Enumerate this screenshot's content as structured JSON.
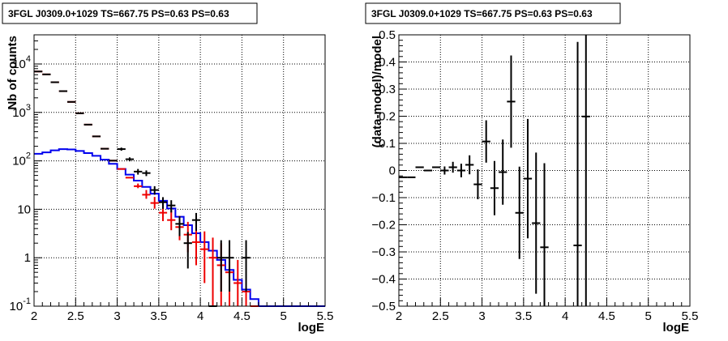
{
  "chart_data": [
    {
      "type": "histogram",
      "title": "3FGL J0309.0+1029 TS=667.75 PS=0.63 PS=0.63",
      "xlabel": "logE",
      "ylabel": "Nb of counts",
      "xlim": [
        2,
        5.5
      ],
      "ylim": [
        0.1,
        40000
      ],
      "yscale": "log",
      "grid": true,
      "x_ticks": [
        {
          "value": 2,
          "label": "2"
        },
        {
          "value": 2.5,
          "label": "2.5"
        },
        {
          "value": 3,
          "label": "3"
        },
        {
          "value": 3.5,
          "label": "3.5"
        },
        {
          "value": 4,
          "label": "4"
        },
        {
          "value": 4.5,
          "label": "4.5"
        },
        {
          "value": 5,
          "label": "5"
        },
        {
          "value": 5.5,
          "label": "5.5"
        }
      ],
      "y_ticks": [
        {
          "value": 0.1,
          "label": "10^-1",
          "base": "10",
          "exp": "-1"
        },
        {
          "value": 1,
          "label": "1",
          "base": "1",
          "exp": ""
        },
        {
          "value": 10,
          "label": "10",
          "base": "10",
          "exp": ""
        },
        {
          "value": 100,
          "label": "10^2",
          "base": "10",
          "exp": "2"
        },
        {
          "value": 1000,
          "label": "10^3",
          "base": "10",
          "exp": "3"
        },
        {
          "value": 10000,
          "label": "10^4",
          "base": "10",
          "exp": "4"
        }
      ],
      "series": [
        {
          "style": "step",
          "color": "#0000ee",
          "bin_width": 0.1,
          "x": [
            2.0,
            2.1,
            2.2,
            2.3,
            2.4,
            2.5,
            2.6,
            2.7,
            2.8,
            2.9,
            3.0,
            3.1,
            3.2,
            3.3,
            3.4,
            3.5,
            3.6,
            3.7,
            3.8,
            3.9,
            4.0,
            4.1,
            4.2,
            4.3,
            4.4,
            4.5,
            4.6,
            4.7,
            4.8,
            4.9,
            5.0,
            5.1,
            5.2,
            5.3,
            5.4
          ],
          "values": [
            140,
            150,
            165,
            175,
            172,
            160,
            145,
            127,
            106,
            87,
            68,
            52,
            39,
            29,
            21,
            15,
            10.4,
            7.0,
            4.7,
            3.2,
            2.1,
            1.4,
            0.9,
            0.56,
            0.35,
            0.22,
            0.14,
            0.1,
            0.1,
            0.1,
            0.1,
            0.1,
            0.1,
            0.1,
            0.1
          ]
        },
        {
          "style": "errorbar",
          "color": "#ee0000",
          "x": [
            2.05,
            2.15,
            2.25,
            2.35,
            2.45,
            2.55,
            2.65,
            2.75,
            2.85,
            2.95,
            3.05,
            3.15,
            3.25,
            3.35,
            3.45,
            3.55,
            3.65,
            3.75,
            3.85,
            3.95,
            4.05,
            4.15,
            4.25,
            4.35,
            4.45,
            4.55,
            4.65
          ],
          "values": [
            7000,
            6100,
            4200,
            2750,
            1650,
            960,
            560,
            320,
            178,
            101,
            68,
            45,
            30,
            20,
            13.5,
            8.5,
            6.0,
            4.3,
            3.0,
            2.1,
            1.5,
            1.0,
            0.7,
            0.5,
            0.3,
            0.2,
            0.1
          ],
          "err_low": [
            0,
            0,
            0,
            0,
            0,
            0,
            0,
            0,
            0,
            0,
            0,
            0,
            2.7,
            3.5,
            3.2,
            2.8,
            2.3,
            2.0,
            1.7,
            1.4,
            1.2,
            0.95,
            0.6,
            0.45,
            0.28,
            0.1,
            0
          ],
          "err_high": [
            0,
            0,
            0,
            0,
            0,
            0,
            0,
            0,
            0,
            0,
            0,
            0,
            4,
            5,
            4.5,
            4,
            3.5,
            3,
            2.5,
            2.2,
            2.0,
            1.6,
            1.3,
            1.0,
            0.6,
            0,
            0
          ]
        },
        {
          "style": "errorbar",
          "color": "#000000",
          "x": [
            2.05,
            2.15,
            2.25,
            2.35,
            2.45,
            2.55,
            2.65,
            2.75,
            2.85,
            2.95,
            3.05,
            3.15,
            3.25,
            3.35,
            3.45,
            3.55,
            3.65,
            3.75,
            3.85,
            3.95,
            4.15,
            4.25,
            4.35,
            4.55
          ],
          "values": [
            7000,
            6100,
            4200,
            2750,
            1650,
            960,
            560,
            320,
            178,
            101,
            175,
            108,
            60,
            56,
            25,
            14,
            12,
            5,
            2,
            6,
            0.1,
            1,
            1,
            1
          ],
          "err_low": [
            0,
            0,
            0,
            0,
            0,
            0,
            0,
            0,
            0,
            0,
            13,
            10,
            8,
            7.5,
            5,
            3.8,
            3.4,
            2.2,
            1.4,
            2.4,
            0,
            0.8,
            0.8,
            0.8
          ],
          "err_high": [
            0,
            0,
            0,
            0,
            0,
            0,
            0,
            0,
            0,
            0,
            13,
            10,
            8,
            7.5,
            5,
            3.8,
            3.4,
            2.2,
            1.4,
            2.4,
            0,
            1.3,
            1.3,
            1.3
          ]
        }
      ]
    },
    {
      "type": "scatter",
      "title": "3FGL J0309.0+1029 TS=667.75 PS=0.63 PS=0.63",
      "xlabel": "logE",
      "ylabel": "(data-model)/model",
      "xlim": [
        2,
        5.5
      ],
      "ylim": [
        -0.5,
        0.5
      ],
      "grid": true,
      "x_ticks": [
        {
          "value": 2,
          "label": "2"
        },
        {
          "value": 2.5,
          "label": "2.5"
        },
        {
          "value": 3,
          "label": "3"
        },
        {
          "value": 3.5,
          "label": "3.5"
        },
        {
          "value": 4,
          "label": "4"
        },
        {
          "value": 4.5,
          "label": "4.5"
        },
        {
          "value": 5,
          "label": "5"
        },
        {
          "value": 5.5,
          "label": "5.5"
        }
      ],
      "y_ticks": [
        {
          "value": -0.5,
          "label": "−0.5"
        },
        {
          "value": -0.4,
          "label": "−0.4"
        },
        {
          "value": -0.3,
          "label": "−0.3"
        },
        {
          "value": -0.2,
          "label": "−0.2"
        },
        {
          "value": -0.1,
          "label": "−0.1"
        },
        {
          "value": 0,
          "label": "0"
        },
        {
          "value": 0.1,
          "label": "0.1"
        },
        {
          "value": 0.2,
          "label": "0.2"
        },
        {
          "value": 0.3,
          "label": "0.3"
        },
        {
          "value": 0.4,
          "label": "0.4"
        },
        {
          "value": 0.5,
          "label": "0.5"
        }
      ],
      "series": [
        {
          "style": "errorbar",
          "color": "#000000",
          "bin_width": 0.1,
          "x": [
            2.05,
            2.15,
            2.25,
            2.35,
            2.45,
            2.55,
            2.65,
            2.75,
            2.85,
            2.95,
            3.05,
            3.15,
            3.25,
            3.35,
            3.45,
            3.55,
            3.65,
            3.75,
            4.15,
            4.25
          ],
          "values": [
            -0.025,
            -0.025,
            0.012,
            0.0,
            0.012,
            0.0,
            0.012,
            0.0,
            0.021,
            -0.051,
            0.107,
            -0.065,
            -0.006,
            0.254,
            -0.156,
            -0.03,
            -0.194,
            -0.283,
            -0.276,
            0.199
          ],
          "err": [
            0.0,
            0.0,
            0.0,
            0.0,
            0.0,
            0.015,
            0.02,
            0.025,
            0.035,
            0.055,
            0.078,
            0.1,
            0.12,
            0.17,
            0.17,
            0.22,
            0.26,
            0.31,
            0.75,
            0.8
          ]
        }
      ]
    }
  ]
}
